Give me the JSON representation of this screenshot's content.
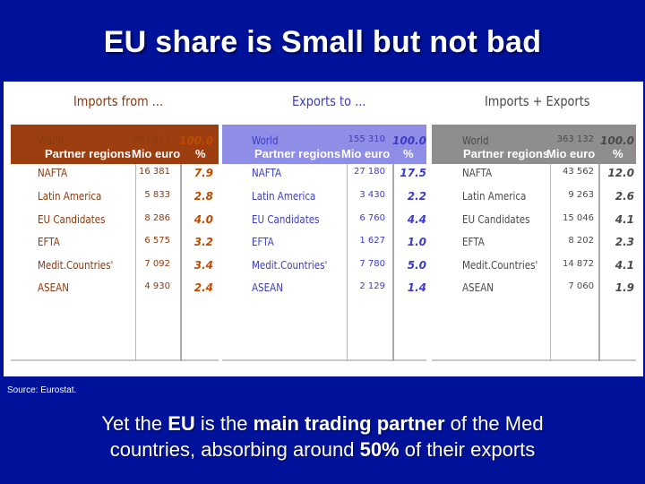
{
  "title": "EU share is Small but not bad",
  "colors": {
    "background": "#00129a",
    "imports_header": "#9c3e10",
    "exports_header": "#8f8ee6",
    "total_header": "#8e8e8e",
    "imports_text": "#8a3a10",
    "exports_text": "#3c3cc8",
    "total_text": "#4a4a4a",
    "imports_pct": "#c04a00"
  },
  "table": {
    "panels": [
      {
        "heading": "Imports from ...",
        "col_region": "Partner regions",
        "col_mio": "Mio euro",
        "col_pct": "%",
        "rows": [
          {
            "region": "World",
            "mio": "207 822",
            "pct": "100.0"
          },
          {
            "region": "NAFTA",
            "mio": "16 381",
            "pct": "7.9"
          },
          {
            "region": "Latin America",
            "mio": "5 833",
            "pct": "2.8"
          },
          {
            "region": "EU Candidates",
            "mio": "8 286",
            "pct": "4.0"
          },
          {
            "region": "EFTA",
            "mio": "6 575",
            "pct": "3.2"
          },
          {
            "region": "Medit.Countries'",
            "mio": "7 092",
            "pct": "3.4"
          },
          {
            "region": "ASEAN",
            "mio": "4 930",
            "pct": "2.4"
          }
        ]
      },
      {
        "heading": "Exports to ...",
        "col_region": "Partner regions",
        "col_mio": "Mio euro",
        "col_pct": "%",
        "rows": [
          {
            "region": "World",
            "mio": "155 310",
            "pct": "100.0"
          },
          {
            "region": "NAFTA",
            "mio": "27 180",
            "pct": "17.5"
          },
          {
            "region": "Latin America",
            "mio": "3 430",
            "pct": "2.2"
          },
          {
            "region": "EU Candidates",
            "mio": "6 760",
            "pct": "4.4"
          },
          {
            "region": "EFTA",
            "mio": "1 627",
            "pct": "1.0"
          },
          {
            "region": "Medit.Countries'",
            "mio": "7 780",
            "pct": "5.0"
          },
          {
            "region": "ASEAN",
            "mio": "2 129",
            "pct": "1.4"
          }
        ]
      },
      {
        "heading": "Imports + Exports",
        "col_region": "Partner regions",
        "col_mio": "Mio euro",
        "col_pct": "%",
        "rows": [
          {
            "region": "World",
            "mio": "363 132",
            "pct": "100.0"
          },
          {
            "region": "NAFTA",
            "mio": "43 562",
            "pct": "12.0"
          },
          {
            "region": "Latin America",
            "mio": "9 263",
            "pct": "2.6"
          },
          {
            "region": "EU Candidates",
            "mio": "15 046",
            "pct": "4.1"
          },
          {
            "region": "EFTA",
            "mio": "8 202",
            "pct": "2.3"
          },
          {
            "region": "Medit.Countries'",
            "mio": "14 872",
            "pct": "4.1"
          },
          {
            "region": "ASEAN",
            "mio": "7 060",
            "pct": "1.9"
          }
        ]
      }
    ]
  },
  "source": "Source: Eurostat.",
  "bottom_text": {
    "p1": "Yet the ",
    "b1": "EU",
    "p2": " is the ",
    "b2": "main trading partner",
    "p3": " of the Med",
    "p4": "countries, absorbing around ",
    "b3": "50%",
    "p5": " of their exports"
  }
}
